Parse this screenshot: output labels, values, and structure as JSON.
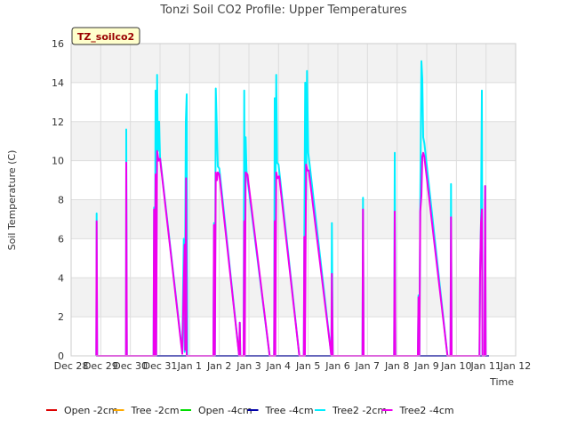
{
  "chart_data": {
    "type": "line",
    "title": "Tonzi Soil CO2 Profile: Upper Temperatures",
    "xlabel": "Time",
    "ylabel": "Soil Temperature (C)",
    "badge": "TZ_soilco2",
    "ylim": [
      0,
      16
    ],
    "yticks": [
      0,
      2,
      4,
      6,
      8,
      10,
      12,
      14,
      16
    ],
    "xlim": [
      0,
      15
    ],
    "xticks": [
      {
        "x": 0,
        "label": "Dec 28"
      },
      {
        "x": 1,
        "label": "Dec 29"
      },
      {
        "x": 2,
        "label": "Dec 30"
      },
      {
        "x": 3,
        "label": "Dec 31"
      },
      {
        "x": 4,
        "label": "Jan 1"
      },
      {
        "x": 5,
        "label": "Jan 2"
      },
      {
        "x": 6,
        "label": "Jan 3"
      },
      {
        "x": 7,
        "label": "Jan 4"
      },
      {
        "x": 8,
        "label": "Jan 5"
      },
      {
        "x": 9,
        "label": "Jan 6"
      },
      {
        "x": 10,
        "label": "Jan 7"
      },
      {
        "x": 11,
        "label": "Jan 8"
      },
      {
        "x": 12,
        "label": "Jan 9"
      },
      {
        "x": 13,
        "label": "Jan 10"
      },
      {
        "x": 14,
        "label": "Jan 11"
      },
      {
        "x": 15,
        "label": "Jan 12"
      }
    ],
    "grid": true,
    "legend_position": "bottom",
    "series": [
      {
        "name": "Open -2cm",
        "color": "#dd0000",
        "points": []
      },
      {
        "name": "Tree -2cm",
        "color": "#ffaa00",
        "points": []
      },
      {
        "name": "Open -4cm",
        "color": "#00dd00",
        "points": []
      },
      {
        "name": "Tree -4cm",
        "color": "#0000aa",
        "points": [
          [
            0.85,
            0
          ],
          [
            14.1,
            0
          ]
        ]
      },
      {
        "name": "Tree2 -2cm",
        "color": "#00eeff",
        "points": [
          [
            0.85,
            0
          ],
          [
            0.86,
            7.3
          ],
          [
            0.88,
            0
          ],
          [
            1.85,
            0
          ],
          [
            1.86,
            11.6
          ],
          [
            1.88,
            0
          ],
          [
            2.78,
            0
          ],
          [
            2.8,
            7.6
          ],
          [
            2.82,
            0
          ],
          [
            2.85,
            13.6
          ],
          [
            2.87,
            0
          ],
          [
            2.9,
            14.4
          ],
          [
            2.93,
            10.5
          ],
          [
            2.97,
            12.0
          ],
          [
            3.0,
            10.2
          ],
          [
            3.75,
            0.2
          ],
          [
            3.8,
            6.0
          ],
          [
            3.83,
            0.2
          ],
          [
            3.87,
            12.0
          ],
          [
            3.9,
            13.4
          ],
          [
            3.92,
            0
          ],
          [
            4.8,
            0
          ],
          [
            4.82,
            6.8
          ],
          [
            4.85,
            0
          ],
          [
            4.88,
            13.7
          ],
          [
            4.91,
            12.0
          ],
          [
            4.95,
            9.7
          ],
          [
            5.0,
            9.6
          ],
          [
            5.67,
            0
          ],
          [
            5.69,
            1.7
          ],
          [
            5.71,
            0
          ],
          [
            5.82,
            0
          ],
          [
            5.84,
            13.6
          ],
          [
            5.86,
            7.0
          ],
          [
            5.89,
            11.2
          ],
          [
            5.92,
            9.5
          ],
          [
            5.97,
            8.8
          ],
          [
            6.7,
            0
          ],
          [
            6.85,
            0
          ],
          [
            6.87,
            13.2
          ],
          [
            6.89,
            7.0
          ],
          [
            6.92,
            14.4
          ],
          [
            6.95,
            9.9
          ],
          [
            7.0,
            9.8
          ],
          [
            7.05,
            9.1
          ],
          [
            7.7,
            0
          ],
          [
            7.85,
            0
          ],
          [
            7.87,
            6.2
          ],
          [
            7.9,
            14.0
          ],
          [
            7.93,
            8.0
          ],
          [
            7.96,
            14.6
          ],
          [
            8.0,
            10.4
          ],
          [
            8.05,
            9.8
          ],
          [
            8.78,
            0
          ],
          [
            8.8,
            6.8
          ],
          [
            8.83,
            0
          ],
          [
            9.83,
            0
          ],
          [
            9.85,
            8.1
          ],
          [
            9.87,
            0
          ],
          [
            10.9,
            0
          ],
          [
            10.92,
            10.4
          ],
          [
            10.94,
            0
          ],
          [
            11.7,
            0
          ],
          [
            11.72,
            3.1
          ],
          [
            11.75,
            0
          ],
          [
            11.78,
            7.9
          ],
          [
            11.82,
            15.1
          ],
          [
            11.85,
            14.2
          ],
          [
            11.88,
            11.2
          ],
          [
            11.92,
            10.9
          ],
          [
            12.7,
            0
          ],
          [
            12.8,
            0
          ],
          [
            12.82,
            8.8
          ],
          [
            12.84,
            0
          ],
          [
            13.78,
            0
          ],
          [
            13.8,
            4.3
          ],
          [
            13.83,
            6.8
          ],
          [
            13.86,
            13.6
          ],
          [
            13.88,
            0
          ],
          [
            13.95,
            0
          ],
          [
            13.97,
            8.7
          ],
          [
            13.99,
            0
          ]
        ]
      },
      {
        "name": "Tree2 -4cm",
        "color": "#ee00ee",
        "points": [
          [
            0.85,
            0
          ],
          [
            0.86,
            6.9
          ],
          [
            0.88,
            0
          ],
          [
            1.85,
            0
          ],
          [
            1.86,
            9.9
          ],
          [
            1.88,
            0
          ],
          [
            2.78,
            0
          ],
          [
            2.8,
            7.5
          ],
          [
            2.82,
            0
          ],
          [
            2.85,
            9.3
          ],
          [
            2.87,
            0
          ],
          [
            2.9,
            10.5
          ],
          [
            2.95,
            10.0
          ],
          [
            3.0,
            10.1
          ],
          [
            3.75,
            0.1
          ],
          [
            3.8,
            3.7
          ],
          [
            3.83,
            5.7
          ],
          [
            3.85,
            0.3
          ],
          [
            3.88,
            9.1
          ],
          [
            3.9,
            0
          ],
          [
            4.8,
            0
          ],
          [
            4.82,
            6.7
          ],
          [
            4.85,
            0
          ],
          [
            4.88,
            9.4
          ],
          [
            4.92,
            9.0
          ],
          [
            4.95,
            9.4
          ],
          [
            5.0,
            9.3
          ],
          [
            5.67,
            0
          ],
          [
            5.69,
            1.7
          ],
          [
            5.71,
            0
          ],
          [
            5.82,
            0
          ],
          [
            5.84,
            6.9
          ],
          [
            5.86,
            0
          ],
          [
            5.89,
            9.4
          ],
          [
            5.95,
            9.3
          ],
          [
            6.7,
            0
          ],
          [
            6.85,
            0
          ],
          [
            6.87,
            6.9
          ],
          [
            6.89,
            0
          ],
          [
            6.92,
            9.4
          ],
          [
            6.96,
            9.1
          ],
          [
            7.02,
            9.2
          ],
          [
            7.7,
            0
          ],
          [
            7.85,
            0
          ],
          [
            7.87,
            6.1
          ],
          [
            7.89,
            0
          ],
          [
            7.93,
            9.8
          ],
          [
            7.97,
            9.5
          ],
          [
            8.02,
            9.5
          ],
          [
            8.78,
            0
          ],
          [
            8.8,
            4.2
          ],
          [
            8.83,
            0
          ],
          [
            9.83,
            0
          ],
          [
            9.85,
            7.5
          ],
          [
            9.87,
            0
          ],
          [
            10.9,
            0
          ],
          [
            10.92,
            7.4
          ],
          [
            10.94,
            0
          ],
          [
            11.7,
            0
          ],
          [
            11.72,
            3.0
          ],
          [
            11.75,
            0
          ],
          [
            11.78,
            7.4
          ],
          [
            11.82,
            8.2
          ],
          [
            11.85,
            10.2
          ],
          [
            11.88,
            10.4
          ],
          [
            11.92,
            10.2
          ],
          [
            12.7,
            0
          ],
          [
            12.8,
            0
          ],
          [
            12.82,
            7.1
          ],
          [
            12.84,
            0
          ],
          [
            13.78,
            0
          ],
          [
            13.8,
            4.3
          ],
          [
            13.83,
            6.8
          ],
          [
            13.86,
            7.5
          ],
          [
            13.88,
            0
          ],
          [
            13.95,
            0
          ],
          [
            13.97,
            8.7
          ],
          [
            13.99,
            0
          ]
        ]
      }
    ]
  }
}
